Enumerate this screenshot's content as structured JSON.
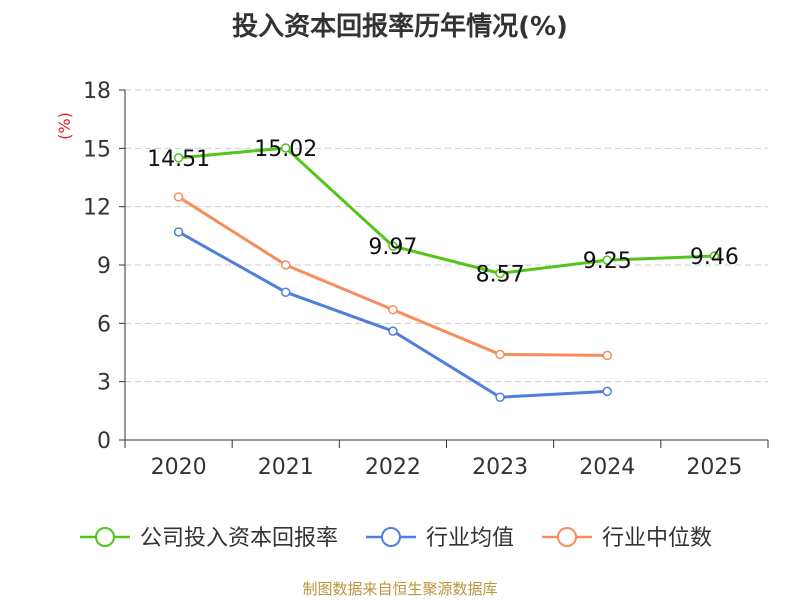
{
  "chart_data": {
    "type": "line",
    "title": "投入资本回报率历年情况(%)",
    "ylabel": "(%)",
    "xlabel": "",
    "ylim": [
      0,
      18
    ],
    "yticks": [
      0,
      3,
      6,
      9,
      12,
      15,
      18
    ],
    "categories": [
      "2020",
      "2021",
      "2022",
      "2023",
      "2024",
      "2025"
    ],
    "grid": true,
    "legend_position": "bottom",
    "series": [
      {
        "name": "公司投入资本回报率",
        "color": "#52c41a",
        "show_labels": true,
        "values": [
          14.51,
          15.02,
          9.97,
          8.57,
          9.25,
          9.46
        ]
      },
      {
        "name": "行业均值",
        "color": "#4e7fdc",
        "show_labels": false,
        "values": [
          10.7,
          7.6,
          5.6,
          2.2,
          2.5,
          null
        ]
      },
      {
        "name": "行业中位数",
        "color": "#f68d5c",
        "show_labels": false,
        "values": [
          12.5,
          9.0,
          6.7,
          4.4,
          4.35,
          null
        ]
      }
    ]
  },
  "source": "制图数据来自恒生聚源数据库"
}
